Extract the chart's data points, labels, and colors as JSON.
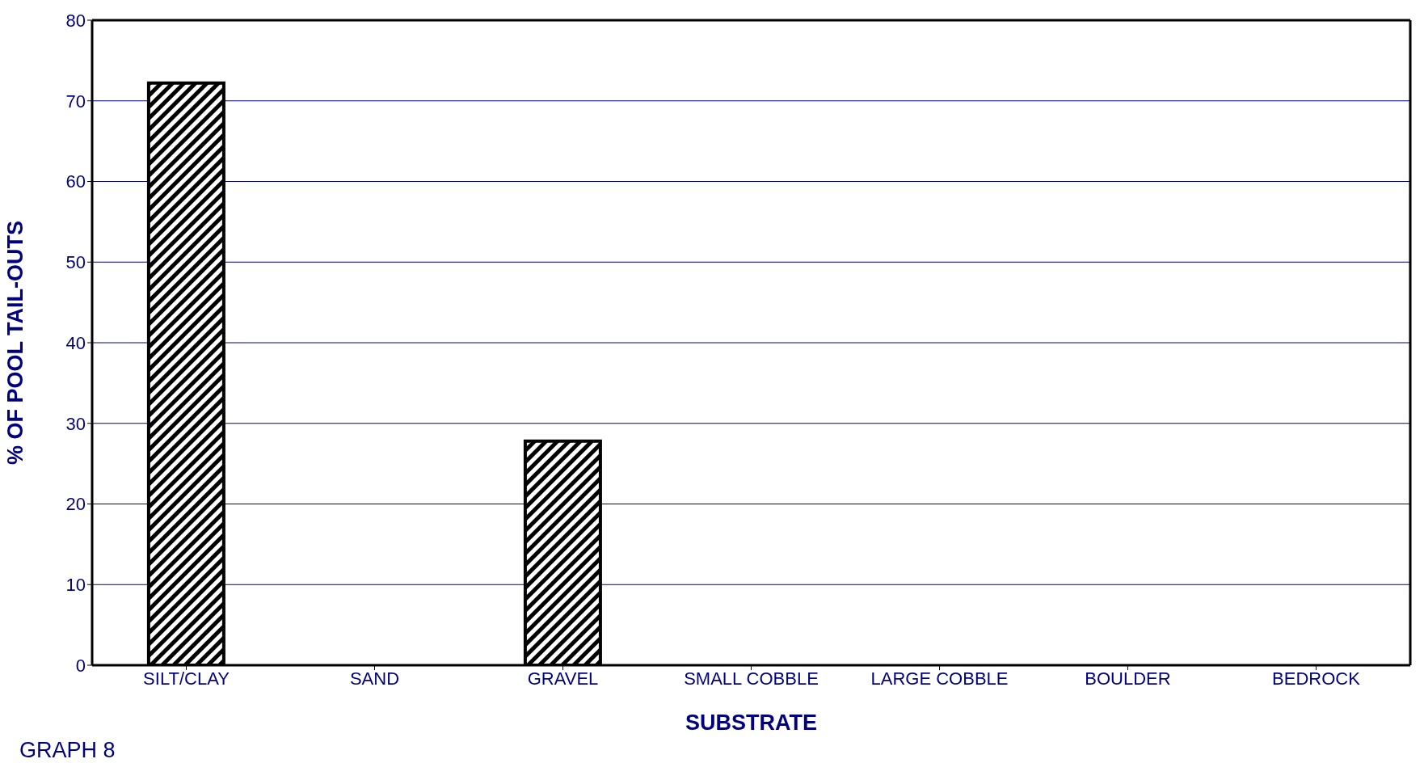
{
  "chart_data": {
    "type": "bar",
    "xlabel": "SUBSTRATE",
    "ylabel": "% OF POOL TAIL-OUTS",
    "categories": [
      "SILT/CLAY",
      "SAND",
      "GRAVEL",
      "SMALL COBBLE",
      "LARGE COBBLE",
      "BOULDER",
      "BEDROCK"
    ],
    "values": [
      72.2,
      0,
      27.8,
      0,
      0,
      0,
      0
    ],
    "color": "#000000",
    "ylim": [
      0,
      80
    ],
    "yticks": [
      0,
      10,
      20,
      30,
      40,
      50,
      60,
      70,
      80
    ],
    "grid": "y",
    "annotations": [
      "GRAPH 8"
    ]
  }
}
